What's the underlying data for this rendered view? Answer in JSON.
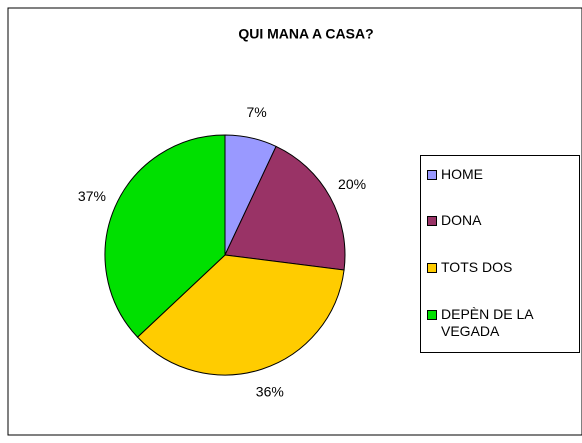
{
  "chart_data": {
    "type": "pie",
    "title": "QUI MANA A CASA?",
    "categories": [
      "HOME",
      "DONA",
      "TOTS DOS",
      "DEPÈN DE LA VEGADA"
    ],
    "values": [
      7,
      20,
      36,
      37
    ],
    "value_labels": [
      "7%",
      "20%",
      "36%",
      "37%"
    ],
    "colors": [
      "#9999ff",
      "#993366",
      "#ffcc00",
      "#00e000"
    ],
    "legend": "right"
  }
}
